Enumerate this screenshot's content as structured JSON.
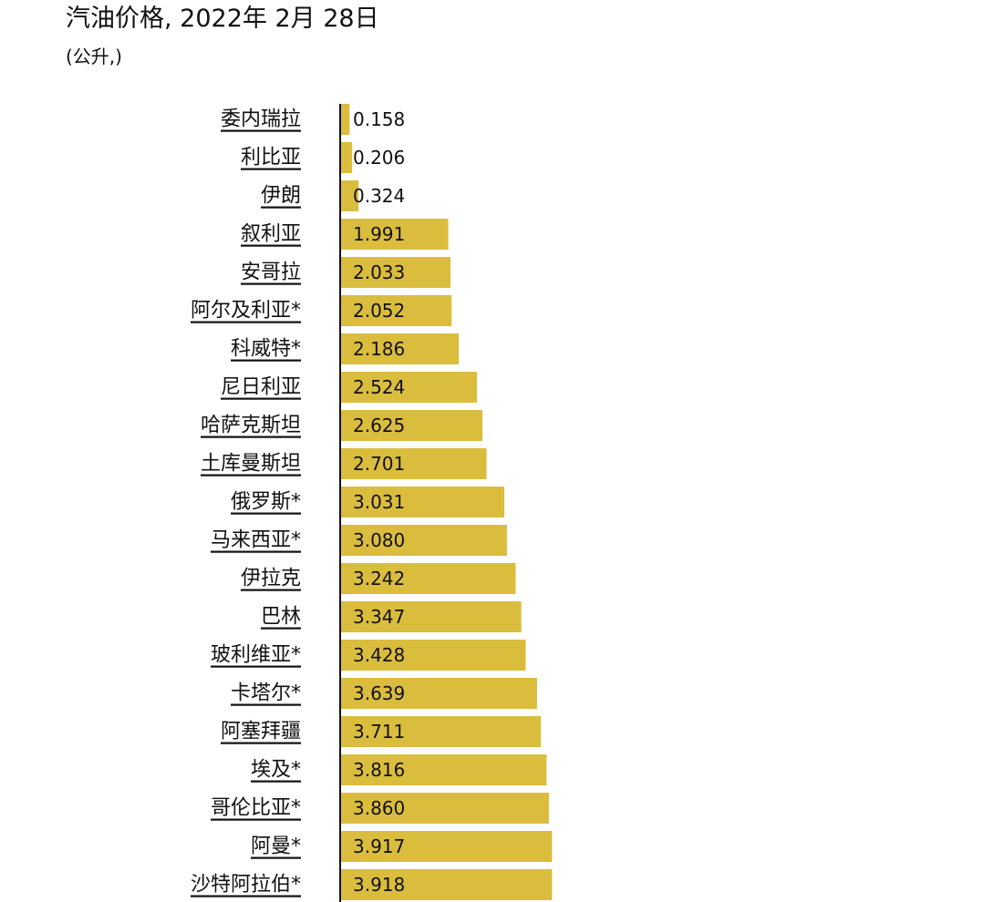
{
  "chart_data": {
    "type": "bar",
    "orientation": "horizontal",
    "title": "汽油价格, 2022年 2月 28日",
    "subtitle": "(公升,)",
    "categories": [
      "委内瑞拉",
      "利比亚",
      "伊朗",
      "叙利亚",
      "安哥拉",
      "阿尔及利亚*",
      "科威特*",
      "尼日利亚",
      "哈萨克斯坦",
      "土库曼斯坦",
      "俄罗斯*",
      "马来西亚*",
      "伊拉克",
      "巴林",
      "玻利维亚*",
      "卡塔尔*",
      "阿塞拜疆",
      "埃及*",
      "哥伦比亚*",
      "阿曼*",
      "沙特阿拉伯*"
    ],
    "values": [
      0.158,
      0.206,
      0.324,
      1.991,
      2.033,
      2.052,
      2.186,
      2.524,
      2.625,
      2.701,
      3.031,
      3.08,
      3.242,
      3.347,
      3.428,
      3.639,
      3.711,
      3.816,
      3.86,
      3.917,
      3.918
    ],
    "value_labels": [
      "0.158",
      "0.206",
      "0.324",
      "1.991",
      "2.033",
      "2.052",
      "2.186",
      "2.524",
      "2.625",
      "2.701",
      "3.031",
      "3.080",
      "3.242",
      "3.347",
      "3.428",
      "3.639",
      "3.711",
      "3.816",
      "3.860",
      "3.917",
      "3.918"
    ],
    "bar_color": "#dbbd3e",
    "axis_color": "#111111",
    "label_underline": true,
    "grid": false,
    "legend": "none"
  }
}
